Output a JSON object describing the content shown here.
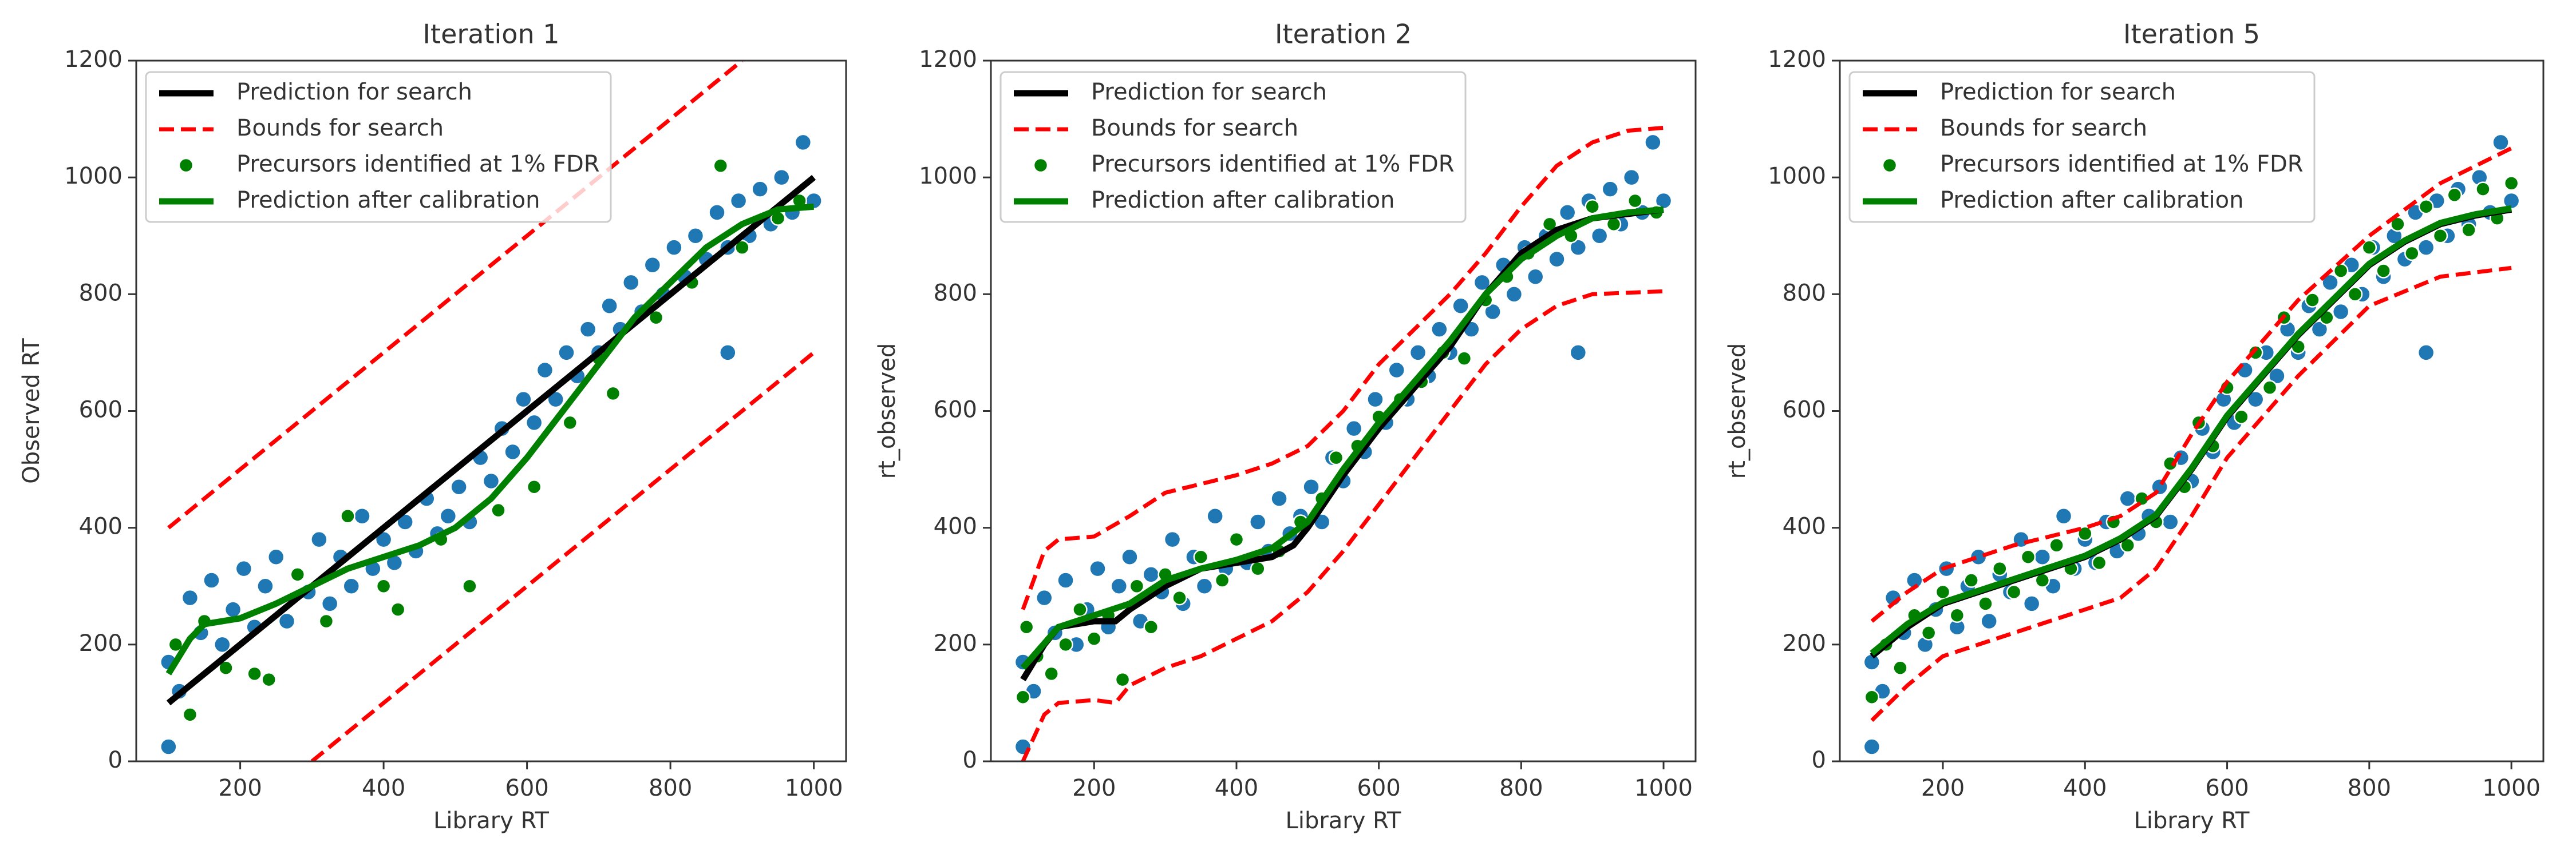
{
  "chart_data": [
    {
      "type": "scatter",
      "title": "Iteration 1",
      "xlabel": "Library RT",
      "ylabel": "Observed RT",
      "xlim": [
        55,
        1045
      ],
      "ylim": [
        0,
        1200
      ],
      "xticks": [
        200,
        400,
        600,
        800,
        1000
      ],
      "yticks": [
        0,
        200,
        400,
        600,
        800,
        1000,
        1200
      ],
      "legend": "upper left",
      "points": {
        "color": "#1f77b4",
        "x": [
          100,
          100,
          115,
          130,
          145,
          160,
          175,
          190,
          205,
          220,
          235,
          250,
          265,
          280,
          295,
          310,
          325,
          340,
          355,
          370,
          385,
          400,
          415,
          430,
          445,
          460,
          475,
          490,
          505,
          520,
          535,
          550,
          565,
          580,
          595,
          610,
          625,
          640,
          655,
          670,
          685,
          700,
          715,
          730,
          745,
          760,
          775,
          790,
          805,
          820,
          835,
          850,
          865,
          880,
          880,
          895,
          910,
          925,
          940,
          955,
          970,
          985,
          1000
        ],
        "y": [
          170,
          25,
          120,
          280,
          220,
          310,
          200,
          260,
          330,
          230,
          300,
          350,
          240,
          320,
          290,
          380,
          270,
          350,
          300,
          420,
          330,
          380,
          340,
          410,
          360,
          450,
          390,
          420,
          470,
          410,
          520,
          480,
          570,
          530,
          620,
          580,
          670,
          620,
          700,
          660,
          740,
          700,
          780,
          740,
          820,
          770,
          850,
          800,
          880,
          830,
          900,
          860,
          940,
          880,
          700,
          960,
          900,
          980,
          920,
          1000,
          940,
          1060,
          960
        ]
      },
      "series": [
        {
          "name": "Prediction for search",
          "color": "#000000",
          "style": "solid",
          "x": [
            100,
            1000
          ],
          "values": [
            100,
            1000
          ]
        },
        {
          "name": "Bounds for search",
          "color": "#ff0000",
          "style": "dashed",
          "x": [
            100,
            900
          ],
          "values": [
            400,
            1200
          ]
        },
        {
          "color": "#ff0000",
          "style": "dashed",
          "x": [
            300,
            1000
          ],
          "values": [
            0,
            700
          ]
        },
        {
          "name": "Precursors identified at 1% FDR",
          "color": "#008000",
          "style": "points",
          "x": [
            110,
            130,
            150,
            180,
            220,
            240,
            280,
            320,
            350,
            400,
            420,
            480,
            520,
            560,
            610,
            660,
            700,
            720,
            780,
            830,
            870,
            900,
            950,
            980
          ],
          "values": [
            200,
            80,
            240,
            160,
            150,
            140,
            320,
            240,
            420,
            300,
            260,
            380,
            300,
            430,
            470,
            580,
            690,
            630,
            760,
            820,
            1020,
            880,
            930,
            960
          ]
        },
        {
          "name": "Prediction after calibration",
          "color": "#008000",
          "style": "solid",
          "x": [
            100,
            130,
            150,
            200,
            250,
            300,
            350,
            400,
            450,
            500,
            550,
            600,
            650,
            700,
            750,
            800,
            850,
            900,
            950,
            1000
          ],
          "values": [
            150,
            210,
            235,
            245,
            270,
            300,
            330,
            350,
            370,
            400,
            450,
            520,
            600,
            680,
            760,
            820,
            880,
            920,
            945,
            950
          ]
        }
      ]
    },
    {
      "type": "scatter",
      "title": "Iteration 2",
      "xlabel": "Library RT",
      "ylabel": "rt_observed",
      "xlim": [
        55,
        1045
      ],
      "ylim": [
        0,
        1200
      ],
      "xticks": [
        200,
        400,
        600,
        800,
        1000
      ],
      "yticks": [
        0,
        200,
        400,
        600,
        800,
        1000,
        1200
      ],
      "legend": "upper left",
      "points": {
        "color": "#1f77b4",
        "x": [
          100,
          100,
          115,
          130,
          145,
          160,
          175,
          190,
          205,
          220,
          235,
          250,
          265,
          280,
          295,
          310,
          325,
          340,
          355,
          370,
          385,
          400,
          415,
          430,
          445,
          460,
          475,
          490,
          505,
          520,
          535,
          550,
          565,
          580,
          595,
          610,
          625,
          640,
          655,
          670,
          685,
          700,
          715,
          730,
          745,
          760,
          775,
          790,
          805,
          820,
          835,
          850,
          865,
          880,
          880,
          895,
          910,
          925,
          940,
          955,
          970,
          985,
          1000
        ],
        "y": [
          170,
          25,
          120,
          280,
          220,
          310,
          200,
          260,
          330,
          230,
          300,
          350,
          240,
          320,
          290,
          380,
          270,
          350,
          300,
          420,
          330,
          380,
          340,
          410,
          360,
          450,
          390,
          420,
          470,
          410,
          520,
          480,
          570,
          530,
          620,
          580,
          670,
          620,
          700,
          660,
          740,
          700,
          780,
          740,
          820,
          770,
          850,
          800,
          880,
          830,
          900,
          860,
          940,
          880,
          700,
          960,
          900,
          980,
          920,
          1000,
          940,
          1060,
          960
        ]
      },
      "series": [
        {
          "name": "Prediction for search",
          "color": "#000000",
          "style": "solid",
          "x": [
            100,
            130,
            150,
            200,
            230,
            250,
            300,
            350,
            400,
            450,
            480,
            500,
            550,
            600,
            650,
            700,
            750,
            800,
            850,
            900,
            1000
          ],
          "values": [
            140,
            200,
            230,
            240,
            240,
            260,
            300,
            330,
            340,
            350,
            370,
            400,
            490,
            570,
            640,
            710,
            800,
            870,
            910,
            930,
            945
          ]
        },
        {
          "name": "Bounds for search",
          "color": "#ff0000",
          "style": "dashed",
          "x": [
            100,
            130,
            150,
            200,
            250,
            300,
            400,
            450,
            500,
            550,
            600,
            650,
            700,
            750,
            800,
            850,
            900,
            950,
            1000
          ],
          "values": [
            260,
            360,
            380,
            385,
            420,
            460,
            490,
            510,
            540,
            600,
            680,
            740,
            800,
            870,
            950,
            1020,
            1060,
            1080,
            1085
          ]
        },
        {
          "color": "#ff0000",
          "style": "dashed",
          "x": [
            100,
            130,
            150,
            200,
            230,
            250,
            300,
            350,
            400,
            450,
            500,
            550,
            600,
            650,
            700,
            750,
            800,
            850,
            900,
            1000
          ],
          "values": [
            0,
            80,
            100,
            105,
            100,
            130,
            160,
            180,
            210,
            240,
            290,
            360,
            440,
            520,
            600,
            680,
            740,
            780,
            800,
            805
          ]
        },
        {
          "name": "Precursors identified at 1% FDR",
          "color": "#008000",
          "style": "points",
          "x": [
            100,
            105,
            120,
            140,
            160,
            180,
            200,
            220,
            240,
            260,
            280,
            300,
            320,
            350,
            380,
            400,
            430,
            460,
            490,
            520,
            540,
            570,
            600,
            630,
            660,
            690,
            720,
            750,
            780,
            810,
            840,
            870,
            900,
            930,
            960,
            990
          ],
          "values": [
            110,
            230,
            180,
            150,
            200,
            260,
            210,
            250,
            140,
            300,
            230,
            320,
            280,
            350,
            310,
            380,
            330,
            360,
            410,
            450,
            520,
            540,
            590,
            620,
            650,
            700,
            690,
            790,
            830,
            870,
            920,
            900,
            950,
            920,
            960,
            940
          ]
        },
        {
          "name": "Prediction after calibration",
          "color": "#008000",
          "style": "solid",
          "x": [
            100,
            150,
            200,
            250,
            300,
            350,
            400,
            450,
            500,
            550,
            600,
            650,
            700,
            750,
            800,
            850,
            900,
            950,
            1000
          ],
          "values": [
            160,
            230,
            250,
            270,
            310,
            330,
            345,
            365,
            410,
            500,
            580,
            650,
            720,
            800,
            860,
            900,
            930,
            940,
            945
          ]
        }
      ]
    },
    {
      "type": "scatter",
      "title": "Iteration 5",
      "xlabel": "Library RT",
      "ylabel": "rt_observed",
      "xlim": [
        55,
        1045
      ],
      "ylim": [
        0,
        1200
      ],
      "xticks": [
        200,
        400,
        600,
        800,
        1000
      ],
      "yticks": [
        0,
        200,
        400,
        600,
        800,
        1000,
        1200
      ],
      "legend": "upper left",
      "points": {
        "color": "#1f77b4",
        "x": [
          100,
          100,
          115,
          130,
          145,
          160,
          175,
          190,
          205,
          220,
          235,
          250,
          265,
          280,
          295,
          310,
          325,
          340,
          355,
          370,
          385,
          400,
          415,
          430,
          445,
          460,
          475,
          490,
          505,
          520,
          535,
          550,
          565,
          580,
          595,
          610,
          625,
          640,
          655,
          670,
          685,
          700,
          715,
          730,
          745,
          760,
          775,
          790,
          805,
          820,
          835,
          850,
          865,
          880,
          880,
          895,
          910,
          925,
          940,
          955,
          970,
          985,
          1000
        ],
        "y": [
          170,
          25,
          120,
          280,
          220,
          310,
          200,
          260,
          330,
          230,
          300,
          350,
          240,
          320,
          290,
          380,
          270,
          350,
          300,
          420,
          330,
          380,
          340,
          410,
          360,
          450,
          390,
          420,
          470,
          410,
          520,
          480,
          570,
          530,
          620,
          580,
          670,
          620,
          700,
          660,
          740,
          700,
          780,
          740,
          820,
          770,
          850,
          800,
          880,
          830,
          900,
          860,
          940,
          880,
          700,
          960,
          900,
          980,
          920,
          1000,
          940,
          1060,
          960
        ]
      },
      "series": [
        {
          "name": "Prediction for search",
          "color": "#000000",
          "style": "solid",
          "x": [
            100,
            150,
            200,
            250,
            300,
            350,
            400,
            450,
            500,
            550,
            600,
            650,
            700,
            750,
            800,
            850,
            900,
            950,
            1000
          ],
          "values": [
            180,
            230,
            270,
            290,
            310,
            330,
            350,
            380,
            420,
            500,
            590,
            660,
            730,
            790,
            850,
            890,
            920,
            935,
            945
          ]
        },
        {
          "name": "Bounds for search",
          "color": "#ff0000",
          "style": "dashed",
          "x": [
            100,
            150,
            200,
            300,
            400,
            450,
            500,
            550,
            600,
            700,
            800,
            900,
            1000
          ],
          "values": [
            240,
            290,
            330,
            370,
            400,
            420,
            460,
            560,
            650,
            790,
            900,
            990,
            1050
          ]
        },
        {
          "color": "#ff0000",
          "style": "dashed",
          "x": [
            100,
            150,
            200,
            300,
            400,
            450,
            500,
            550,
            600,
            700,
            800,
            900,
            1000
          ],
          "values": [
            70,
            130,
            180,
            220,
            260,
            280,
            330,
            420,
            520,
            660,
            780,
            830,
            845
          ]
        },
        {
          "name": "Precursors identified at 1% FDR",
          "color": "#008000",
          "style": "points",
          "x": [
            100,
            120,
            140,
            160,
            180,
            200,
            220,
            240,
            260,
            280,
            300,
            320,
            340,
            360,
            380,
            400,
            420,
            440,
            460,
            480,
            500,
            520,
            540,
            560,
            580,
            600,
            620,
            640,
            660,
            680,
            700,
            720,
            740,
            760,
            780,
            800,
            820,
            840,
            860,
            880,
            900,
            920,
            940,
            960,
            980,
            1000
          ],
          "values": [
            110,
            200,
            160,
            250,
            220,
            290,
            250,
            310,
            270,
            330,
            290,
            350,
            310,
            370,
            330,
            390,
            340,
            410,
            370,
            450,
            410,
            510,
            470,
            580,
            540,
            640,
            590,
            700,
            640,
            760,
            710,
            790,
            760,
            840,
            800,
            880,
            840,
            920,
            870,
            950,
            900,
            970,
            910,
            980,
            930,
            990
          ]
        },
        {
          "name": "Prediction after calibration",
          "color": "#008000",
          "style": "solid",
          "x": [
            100,
            150,
            200,
            250,
            300,
            350,
            400,
            450,
            500,
            550,
            600,
            650,
            700,
            750,
            800,
            850,
            900,
            950,
            1000
          ],
          "values": [
            185,
            235,
            272,
            292,
            312,
            332,
            352,
            382,
            422,
            502,
            592,
            662,
            732,
            792,
            852,
            892,
            922,
            937,
            947
          ]
        }
      ]
    }
  ]
}
